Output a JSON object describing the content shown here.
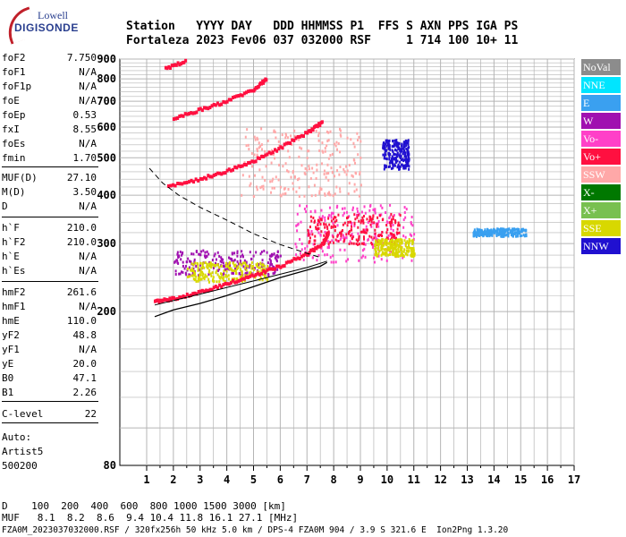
{
  "logo": {
    "line1": "Lowell",
    "line2": "DIGISONDE"
  },
  "header": {
    "line1": "Station   YYYY DAY   DDD HHMMSS P1  FFS S AXN PPS IGA PS",
    "line2": "Fortaleza 2023 Fev06 037 032000 RSF     1 714 100 10+ 11"
  },
  "params": [
    {
      "k": "foF2",
      "v": "7.750"
    },
    {
      "k": "foF1",
      "v": "N/A"
    },
    {
      "k": "foF1p",
      "v": "N/A"
    },
    {
      "k": "foE",
      "v": "N/A"
    },
    {
      "k": "foEp",
      "v": "0.53"
    },
    {
      "k": "fxI",
      "v": "8.55"
    },
    {
      "k": "foEs",
      "v": "N/A"
    },
    {
      "k": "fmin",
      "v": "1.70"
    },
    {
      "k": "MUF(D)",
      "v": "27.10"
    },
    {
      "k": "M(D)",
      "v": "3.50"
    },
    {
      "k": "D",
      "v": "N/A"
    },
    {
      "k": "h`F",
      "v": "210.0"
    },
    {
      "k": "h`F2",
      "v": "210.0"
    },
    {
      "k": "h`E",
      "v": "N/A"
    },
    {
      "k": "h`Es",
      "v": "N/A"
    },
    {
      "k": "hmF2",
      "v": "261.6"
    },
    {
      "k": "hmF1",
      "v": "N/A"
    },
    {
      "k": "hmE",
      "v": "110.0"
    },
    {
      "k": "yF2",
      "v": "48.8"
    },
    {
      "k": "yF1",
      "v": "N/A"
    },
    {
      "k": "yE",
      "v": "20.0"
    },
    {
      "k": "B0",
      "v": "47.1"
    },
    {
      "k": "B1",
      "v": "2.26"
    },
    {
      "k": "C-level",
      "v": "22"
    }
  ],
  "auto": {
    "l1": "Auto:",
    "l2": "Artist5",
    "l3": "500200"
  },
  "legend": [
    {
      "label": "NoVal",
      "color": "#8c8c8c"
    },
    {
      "label": "NNE",
      "color": "#00e5ff"
    },
    {
      "label": "E",
      "color": "#3aa0f0"
    },
    {
      "label": "W",
      "color": "#a010b0"
    },
    {
      "label": "Vo-",
      "color": "#ff40c8"
    },
    {
      "label": "Vo+",
      "color": "#ff1040"
    },
    {
      "label": "SSW",
      "color": "#ffa8a8"
    },
    {
      "label": "X-",
      "color": "#007800"
    },
    {
      "label": "X+",
      "color": "#78c050"
    },
    {
      "label": "SSE",
      "color": "#d8d800"
    },
    {
      "label": "NNW",
      "color": "#2010d0"
    }
  ],
  "footer": {
    "l1": "D    100  200  400  600  800 1000 1500 3000 [km]",
    "l2": "MUF   8.1  8.2  8.6  9.4 10.4 11.8 16.1 27.1 [MHz]",
    "l3": "FZA0M_2023037032000.RSF / 320fx256h 50 kHz 5.0 km / DPS-4 FZA0M 904 / 3.9 S 321.6 E  Ion2Png 1.3.20"
  },
  "chart_data": {
    "type": "scatter",
    "x_unit": "MHz",
    "y_unit": "km",
    "xlim": [
      1,
      17
    ],
    "ylim": [
      80,
      900
    ],
    "y_scale": "log",
    "x_ticks": [
      1,
      2,
      3,
      4,
      5,
      6,
      7,
      8,
      9,
      10,
      11,
      12,
      13,
      14,
      15,
      16,
      17
    ],
    "y_ticks": [
      80,
      200,
      300,
      400,
      500,
      600,
      700,
      800,
      900
    ],
    "grid": true,
    "profile": [
      [
        1.3,
        194
      ],
      [
        2,
        202
      ],
      [
        3,
        210
      ],
      [
        4,
        220
      ],
      [
        5,
        232
      ],
      [
        6,
        245
      ],
      [
        7,
        256
      ],
      [
        7.5,
        262
      ],
      [
        7.75,
        268
      ]
    ],
    "profile_dashed": [
      [
        1.1,
        470
      ],
      [
        1.6,
        430
      ],
      [
        2.2,
        400
      ],
      [
        3,
        372
      ],
      [
        4,
        345
      ],
      [
        5,
        318
      ],
      [
        6,
        298
      ],
      [
        7,
        283
      ],
      [
        7.5,
        276
      ]
    ],
    "profile_lower": [
      [
        1.3,
        208
      ],
      [
        3,
        222
      ],
      [
        5,
        240
      ],
      [
        7,
        260
      ],
      [
        7.75,
        270
      ]
    ],
    "traces": [
      {
        "name": "F1 O-trace",
        "color": "#ff1040",
        "pts": [
          [
            1.3,
            212
          ],
          [
            2,
            216
          ],
          [
            3,
            224
          ],
          [
            4,
            236
          ],
          [
            5,
            248
          ],
          [
            6,
            262
          ],
          [
            7,
            282
          ],
          [
            7.6,
            300
          ],
          [
            7.8,
            320
          ]
        ]
      },
      {
        "name": "2F O-trace",
        "color": "#ff1040",
        "pts": [
          [
            1.8,
            420
          ],
          [
            3,
            440
          ],
          [
            4,
            462
          ],
          [
            5,
            490
          ],
          [
            6,
            530
          ],
          [
            7,
            580
          ],
          [
            7.6,
            620
          ]
        ]
      },
      {
        "name": "3F O-trace",
        "color": "#ff1040",
        "pts": [
          [
            2,
            630
          ],
          [
            3,
            665
          ],
          [
            4,
            700
          ],
          [
            5,
            750
          ],
          [
            5.5,
            800
          ]
        ]
      },
      {
        "name": "4F O-trace",
        "color": "#ff1040",
        "pts": [
          [
            1.7,
            850
          ],
          [
            2.5,
            890
          ]
        ]
      }
    ],
    "spread_clusters": [
      {
        "x": [
          6.5,
          11
        ],
        "y": [
          270,
          380
        ],
        "color": "#ff40c8"
      },
      {
        "x": [
          7,
          10.5
        ],
        "y": [
          300,
          360
        ],
        "color": "#ff1040"
      },
      {
        "x": [
          2,
          6
        ],
        "y": [
          250,
          290
        ],
        "color": "#a010b0"
      },
      {
        "x": [
          4.5,
          9
        ],
        "y": [
          400,
          600
        ],
        "color": "#ffa8a8"
      },
      {
        "x": [
          13.2,
          15.2
        ],
        "y": [
          315,
          330
        ],
        "color": "#3aa0f0"
      },
      {
        "x": [
          9.8,
          10.8
        ],
        "y": [
          470,
          560
        ],
        "color": "#2010d0"
      },
      {
        "x": [
          9.5,
          11
        ],
        "y": [
          280,
          310
        ],
        "color": "#d8d800"
      },
      {
        "x": [
          2.5,
          5.5
        ],
        "y": [
          240,
          270
        ],
        "color": "#d8d800"
      }
    ]
  }
}
